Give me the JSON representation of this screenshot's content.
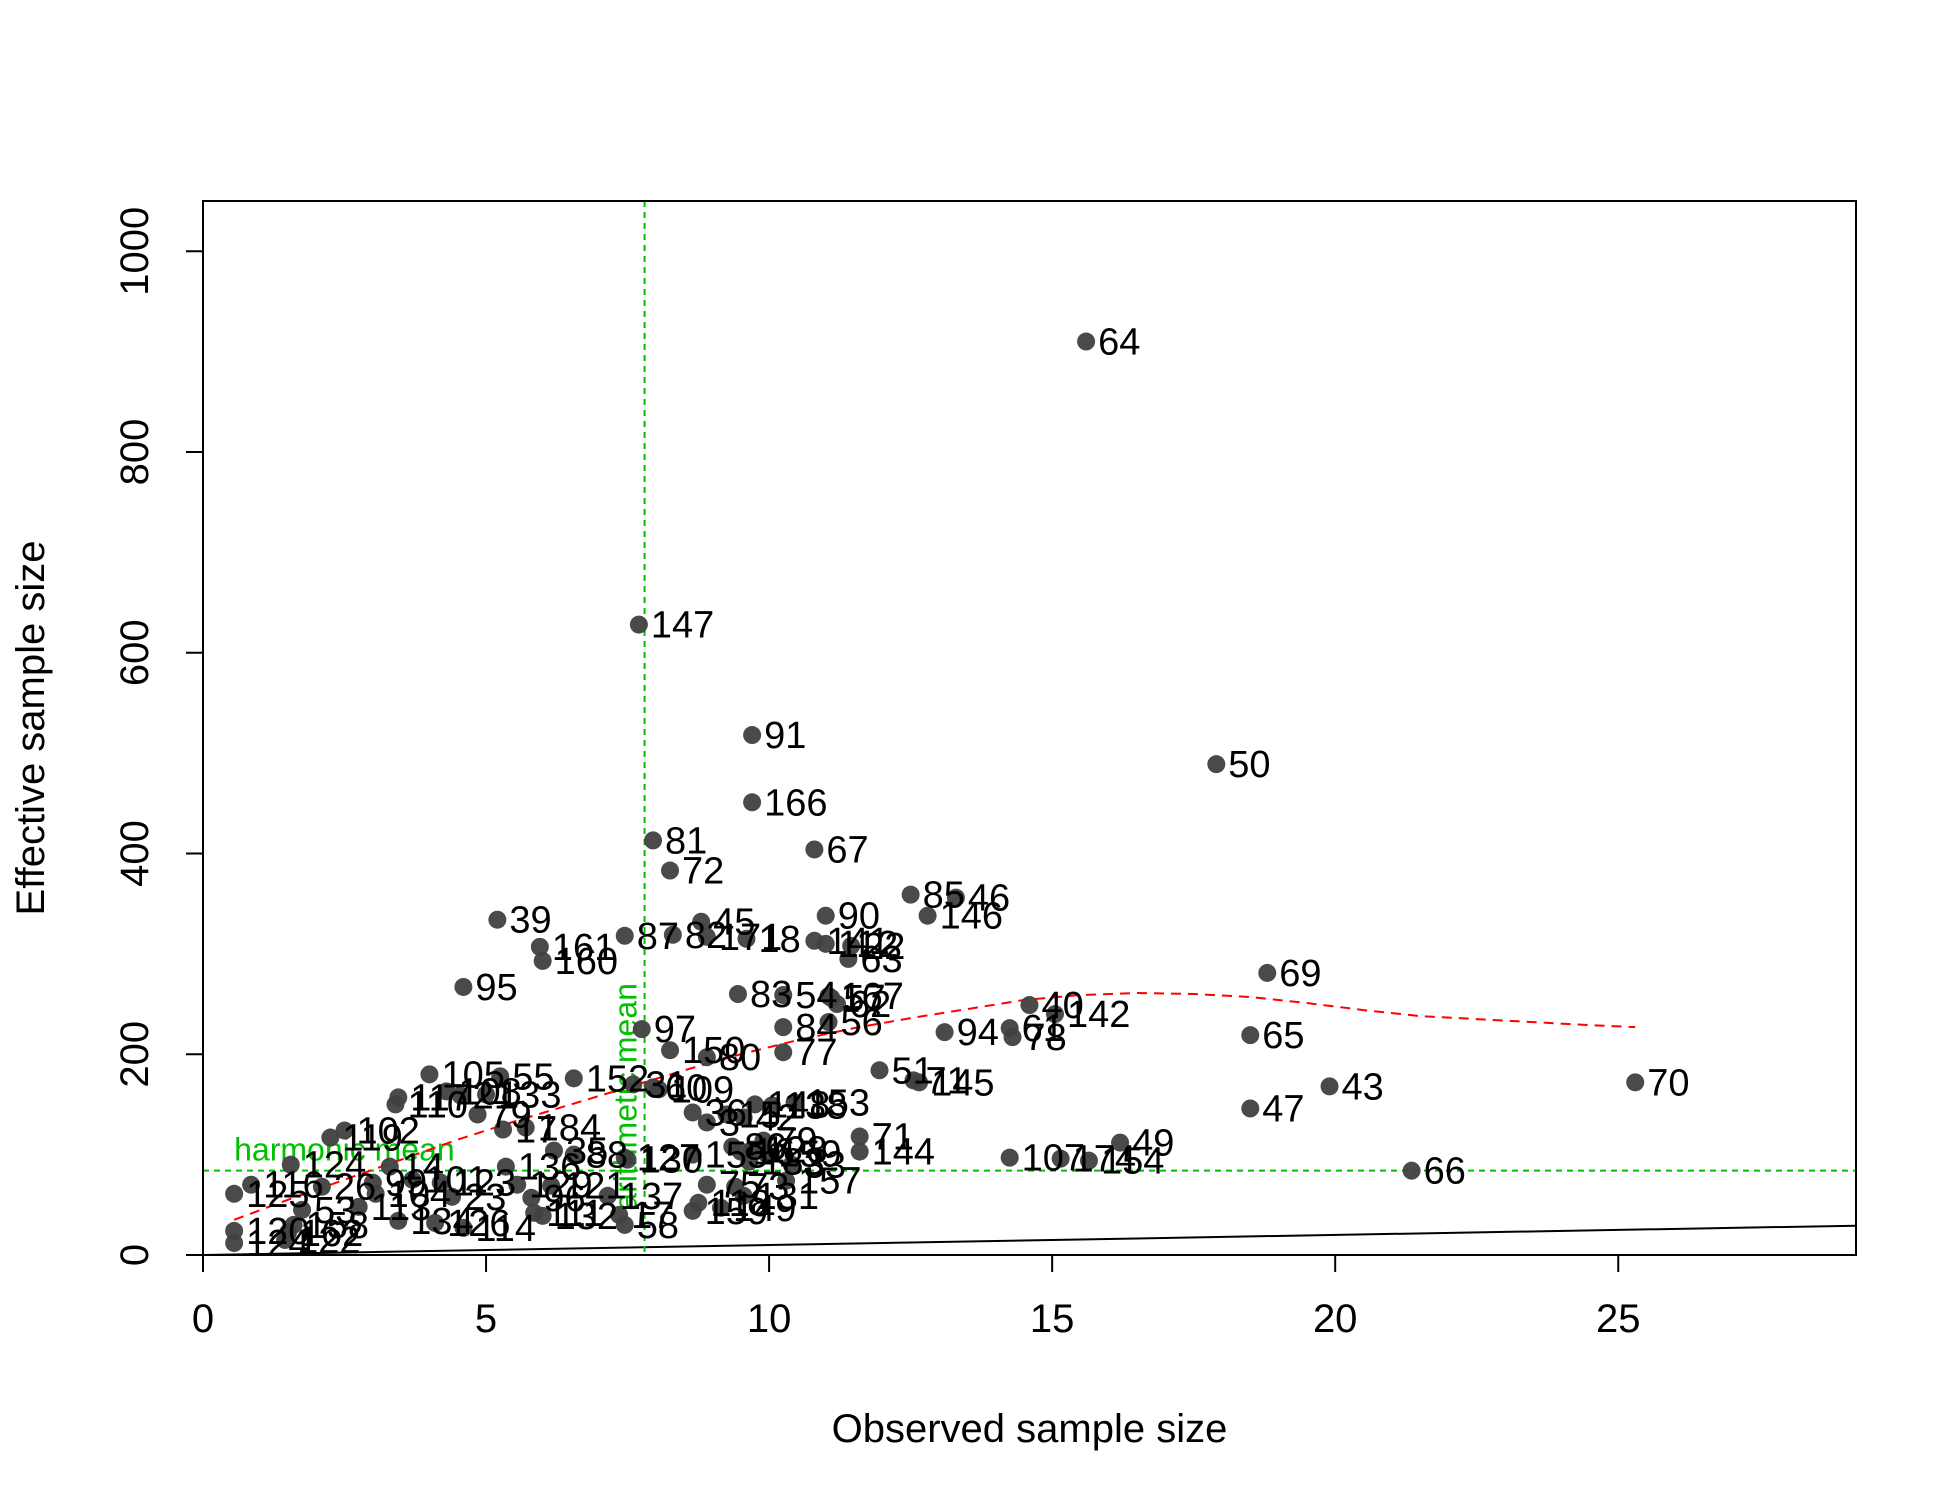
{
  "chart_data": {
    "type": "scatter",
    "title": "",
    "xlabel": "Observed sample size",
    "ylabel": "Effective sample size",
    "xlim": [
      0,
      29.2
    ],
    "ylim": [
      0,
      1050
    ],
    "xticks": [
      "0",
      "5",
      "10",
      "15",
      "20",
      "25"
    ],
    "xtick_values": [
      0,
      5,
      10,
      15,
      20,
      25
    ],
    "yticks": [
      "0",
      "200",
      "400",
      "600",
      "800",
      "1000"
    ],
    "ytick_values": [
      0,
      200,
      400,
      600,
      800,
      1000
    ],
    "grid": false,
    "legend": "none",
    "colors": {
      "points": "#404040",
      "loess": "#ff0000",
      "reference": "#00c000",
      "identity_line": "#000000",
      "frame": "#000000"
    },
    "points": [
      {
        "label": "64",
        "x": 15.6,
        "y": 910
      },
      {
        "label": "147",
        "x": 7.7,
        "y": 628
      },
      {
        "label": "91",
        "x": 9.7,
        "y": 518
      },
      {
        "label": "50",
        "x": 17.9,
        "y": 489
      },
      {
        "label": "166",
        "x": 9.7,
        "y": 451
      },
      {
        "label": "81",
        "x": 7.95,
        "y": 413
      },
      {
        "label": "67",
        "x": 10.8,
        "y": 404
      },
      {
        "label": "72",
        "x": 8.25,
        "y": 383
      },
      {
        "label": "85",
        "x": 12.5,
        "y": 359
      },
      {
        "label": "46",
        "x": 13.3,
        "y": 356
      },
      {
        "label": "146",
        "x": 12.8,
        "y": 338
      },
      {
        "label": "90",
        "x": 11.0,
        "y": 338
      },
      {
        "label": "39",
        "x": 5.2,
        "y": 334
      },
      {
        "label": "45",
        "x": 8.8,
        "y": 332
      },
      {
        "label": "87",
        "x": 7.45,
        "y": 318
      },
      {
        "label": "82",
        "x": 8.3,
        "y": 319
      },
      {
        "label": "171",
        "x": 8.9,
        "y": 317
      },
      {
        "label": "18",
        "x": 9.6,
        "y": 315
      },
      {
        "label": "141",
        "x": 10.8,
        "y": 313
      },
      {
        "label": "112",
        "x": 11.0,
        "y": 310
      },
      {
        "label": "22",
        "x": 11.45,
        "y": 308
      },
      {
        "label": "161",
        "x": 5.95,
        "y": 307
      },
      {
        "label": "160",
        "x": 6.0,
        "y": 293
      },
      {
        "label": "63",
        "x": 11.4,
        "y": 295
      },
      {
        "label": "69",
        "x": 18.8,
        "y": 281
      },
      {
        "label": "95",
        "x": 4.6,
        "y": 267
      },
      {
        "label": "83",
        "x": 9.45,
        "y": 260
      },
      {
        "label": "54",
        "x": 10.25,
        "y": 259
      },
      {
        "label": "167",
        "x": 11.05,
        "y": 258
      },
      {
        "label": "57",
        "x": 11.1,
        "y": 256
      },
      {
        "label": "62",
        "x": 11.2,
        "y": 250
      },
      {
        "label": "40",
        "x": 14.6,
        "y": 249
      },
      {
        "label": "142",
        "x": 15.05,
        "y": 240
      },
      {
        "label": "56",
        "x": 11.05,
        "y": 232
      },
      {
        "label": "84",
        "x": 10.25,
        "y": 227
      },
      {
        "label": "61",
        "x": 14.25,
        "y": 226
      },
      {
        "label": "97",
        "x": 7.75,
        "y": 225
      },
      {
        "label": "94",
        "x": 13.1,
        "y": 222
      },
      {
        "label": "65",
        "x": 18.5,
        "y": 219
      },
      {
        "label": "78",
        "x": 14.3,
        "y": 217
      },
      {
        "label": "150",
        "x": 8.25,
        "y": 204
      },
      {
        "label": "77",
        "x": 10.25,
        "y": 202
      },
      {
        "label": "80",
        "x": 8.9,
        "y": 197
      },
      {
        "label": "51",
        "x": 11.95,
        "y": 184
      },
      {
        "label": "105",
        "x": 4.0,
        "y": 180
      },
      {
        "label": "55",
        "x": 5.25,
        "y": 178
      },
      {
        "label": "152",
        "x": 6.55,
        "y": 176
      },
      {
        "label": "71",
        "x": 12.55,
        "y": 174
      },
      {
        "label": "145",
        "x": 12.65,
        "y": 172
      },
      {
        "label": "70",
        "x": 25.3,
        "y": 172
      },
      {
        "label": "43",
        "x": 19.9,
        "y": 168
      },
      {
        "label": "31",
        "x": 7.6,
        "y": 170
      },
      {
        "label": "60",
        "x": 7.95,
        "y": 167
      },
      {
        "label": "109",
        "x": 8.05,
        "y": 165
      },
      {
        "label": "108",
        "x": 4.3,
        "y": 163
      },
      {
        "label": "21",
        "x": 4.55,
        "y": 159
      },
      {
        "label": "133",
        "x": 5.0,
        "y": 160
      },
      {
        "label": "117",
        "x": 3.45,
        "y": 157
      },
      {
        "label": "110",
        "x": 3.4,
        "y": 150
      },
      {
        "label": "153",
        "x": 10.45,
        "y": 152
      },
      {
        "label": "148",
        "x": 9.75,
        "y": 150
      },
      {
        "label": "138",
        "x": 10.05,
        "y": 149
      },
      {
        "label": "47",
        "x": 18.5,
        "y": 146
      },
      {
        "label": "36",
        "x": 8.65,
        "y": 142
      },
      {
        "label": "15",
        "x": 9.25,
        "y": 140
      },
      {
        "label": "79",
        "x": 4.85,
        "y": 140
      },
      {
        "label": "42",
        "x": 9.55,
        "y": 137
      },
      {
        "label": "3",
        "x": 8.9,
        "y": 132
      },
      {
        "label": "184",
        "x": 5.7,
        "y": 127
      },
      {
        "label": "17",
        "x": 5.3,
        "y": 125
      },
      {
        "label": "102",
        "x": 2.5,
        "y": 124
      },
      {
        "label": "119",
        "x": 2.25,
        "y": 117
      },
      {
        "label": "71",
        "x": 11.6,
        "y": 118
      },
      {
        "label": "49",
        "x": 16.2,
        "y": 112
      },
      {
        "label": "79",
        "x": 9.9,
        "y": 114
      },
      {
        "label": "86",
        "x": 9.35,
        "y": 108
      },
      {
        "label": "128",
        "x": 9.7,
        "y": 105
      },
      {
        "label": "16",
        "x": 9.5,
        "y": 103
      },
      {
        "label": "144",
        "x": 11.6,
        "y": 103
      },
      {
        "label": "155",
        "x": 8.65,
        "y": 100
      },
      {
        "label": "159",
        "x": 9.95,
        "y": 101
      },
      {
        "label": "35",
        "x": 6.2,
        "y": 104
      },
      {
        "label": "88",
        "x": 6.55,
        "y": 100
      },
      {
        "label": "127",
        "x": 7.45,
        "y": 97
      },
      {
        "label": "130",
        "x": 7.5,
        "y": 95
      },
      {
        "label": "107",
        "x": 14.25,
        "y": 97
      },
      {
        "label": "174",
        "x": 15.15,
        "y": 96
      },
      {
        "label": "154",
        "x": 15.65,
        "y": 94
      },
      {
        "label": "183",
        "x": 9.65,
        "y": 93
      },
      {
        "label": "33",
        "x": 10.4,
        "y": 90
      },
      {
        "label": "124",
        "x": 1.55,
        "y": 90
      },
      {
        "label": "136",
        "x": 5.35,
        "y": 88
      },
      {
        "label": "14",
        "x": 3.3,
        "y": 88
      },
      {
        "label": "66",
        "x": 21.35,
        "y": 84
      },
      {
        "label": "116",
        "x": 0.85,
        "y": 70
      },
      {
        "label": "26",
        "x": 2.1,
        "y": 68
      },
      {
        "label": "99",
        "x": 3.0,
        "y": 72
      },
      {
        "label": "101",
        "x": 3.7,
        "y": 75
      },
      {
        "label": "123",
        "x": 4.2,
        "y": 72
      },
      {
        "label": "129",
        "x": 5.55,
        "y": 70
      },
      {
        "label": "121",
        "x": 6.15,
        "y": 69
      },
      {
        "label": "75",
        "x": 8.9,
        "y": 70
      },
      {
        "label": "73",
        "x": 9.4,
        "y": 68
      },
      {
        "label": "157",
        "x": 10.3,
        "y": 74
      },
      {
        "label": "131",
        "x": 9.55,
        "y": 59
      },
      {
        "label": "125",
        "x": 0.55,
        "y": 61
      },
      {
        "label": "104",
        "x": 3.05,
        "y": 61
      },
      {
        "label": "23",
        "x": 4.4,
        "y": 58
      },
      {
        "label": "96",
        "x": 5.8,
        "y": 57
      },
      {
        "label": "137",
        "x": 7.15,
        "y": 59
      },
      {
        "label": "118",
        "x": 8.75,
        "y": 52
      },
      {
        "label": "149",
        "x": 9.15,
        "y": 47
      },
      {
        "label": "159",
        "x": 8.65,
        "y": 44
      },
      {
        "label": "113",
        "x": 2.75,
        "y": 48
      },
      {
        "label": "53",
        "x": 1.75,
        "y": 45
      },
      {
        "label": "111",
        "x": 5.85,
        "y": 42
      },
      {
        "label": "132",
        "x": 6.0,
        "y": 39
      },
      {
        "label": "17",
        "x": 7.35,
        "y": 40
      },
      {
        "label": "58",
        "x": 7.45,
        "y": 30
      },
      {
        "label": "134",
        "x": 3.45,
        "y": 34
      },
      {
        "label": "126",
        "x": 4.1,
        "y": 32
      },
      {
        "label": "114",
        "x": 4.6,
        "y": 27
      },
      {
        "label": "158",
        "x": 1.6,
        "y": 30
      },
      {
        "label": "162",
        "x": 1.5,
        "y": 22
      },
      {
        "label": "120",
        "x": 0.55,
        "y": 24
      },
      {
        "label": "122",
        "x": 1.45,
        "y": 15
      },
      {
        "label": "124",
        "x": 0.55,
        "y": 12
      }
    ],
    "loess": {
      "x": [
        0.55,
        1.5,
        2.5,
        3.5,
        4.5,
        5.5,
        6.5,
        7.5,
        8.5,
        9.5,
        10.5,
        11.5,
        12.5,
        13.5,
        14.5,
        15.5,
        16.5,
        17.5,
        18.5,
        19.5,
        20.5,
        21.5,
        22.5,
        23.5,
        24.5,
        25.3
      ],
      "y": [
        35,
        55,
        75,
        95,
        115,
        133,
        150,
        167,
        184,
        200,
        214,
        226,
        236,
        245,
        254,
        259,
        261,
        260,
        257,
        251,
        244,
        238,
        235,
        232,
        229,
        227
      ]
    },
    "identity_line": {
      "x": [
        0,
        29.2
      ],
      "y": [
        0,
        29.2
      ]
    },
    "reference_lines": [
      {
        "orientation": "horizontal",
        "value": 84,
        "label": "harmonic mean"
      },
      {
        "orientation": "vertical",
        "value": 7.8,
        "label": "arithmetic mean"
      }
    ]
  }
}
